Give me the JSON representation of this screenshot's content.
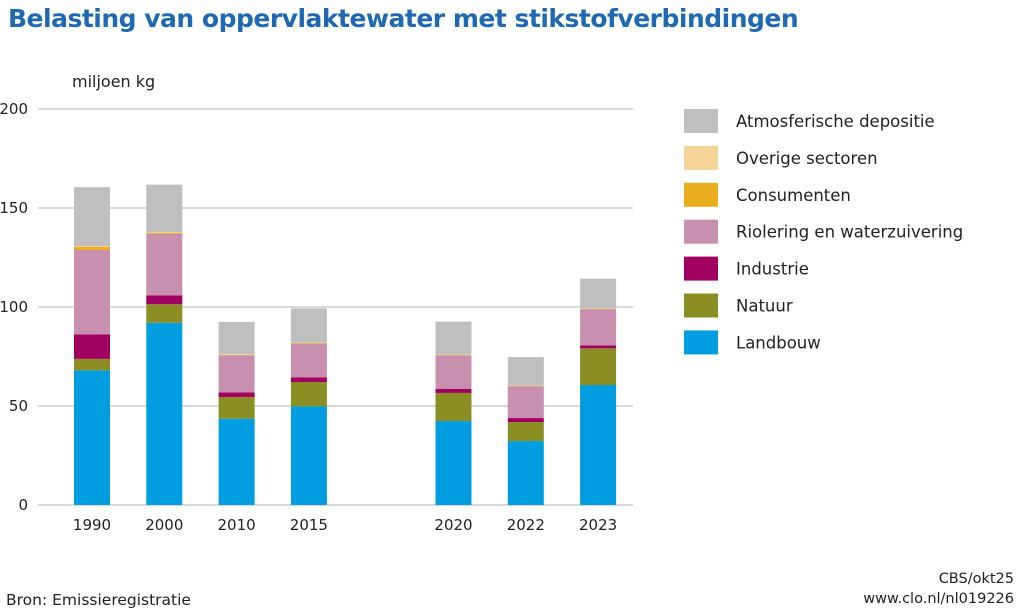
{
  "chart_data": {
    "type": "bar",
    "stacked": true,
    "title": "Belasting van oppervlaktewater met stikstofverbindingen",
    "ylabel": "miljoen kg",
    "xlabel": "",
    "ylim": [
      0,
      200
    ],
    "yticks": [
      0,
      50,
      100,
      150,
      200
    ],
    "grid": true,
    "legend_position": "right",
    "categories": [
      "1990",
      "2000",
      "2010",
      "2015",
      "2020",
      "2022",
      "2023"
    ],
    "series": [
      {
        "name": "Landbouw",
        "color": "#009ee0",
        "values": [
          68,
          92,
          43.6,
          49.8,
          42.4,
          32.3,
          60.6
        ]
      },
      {
        "name": "Natuur",
        "color": "#8b8e22",
        "values": [
          5.8,
          9.4,
          10.9,
          12.3,
          14.2,
          9.6,
          18.5
        ]
      },
      {
        "name": "Industrie",
        "color": "#a10060",
        "values": [
          12.4,
          4.5,
          2.4,
          2.4,
          2,
          2,
          1.5
        ]
      },
      {
        "name": "Riolering en waterzuivering",
        "color": "#c88fae",
        "values": [
          42.6,
          31,
          18.7,
          17,
          17,
          16,
          18.2
        ]
      },
      {
        "name": "Consumenten",
        "color": "#e8ae1e",
        "values": [
          1.5,
          0.6,
          0.3,
          0.3,
          0.2,
          0.2,
          0.2
        ]
      },
      {
        "name": "Overige sectoren",
        "color": "#f5d597",
        "values": [
          0.5,
          0.2,
          0.2,
          0.2,
          0.2,
          0.2,
          0.2
        ]
      },
      {
        "name": "Atmosferische depositie",
        "color": "#bfbfbf",
        "values": [
          29.7,
          24.1,
          16.4,
          17.3,
          16.6,
          14.4,
          15.1
        ]
      }
    ],
    "source": "Bron: Emissieregistratie",
    "credit_line1": "CBS/okt25",
    "credit_line2": "www.clo.nl/nl019226"
  }
}
